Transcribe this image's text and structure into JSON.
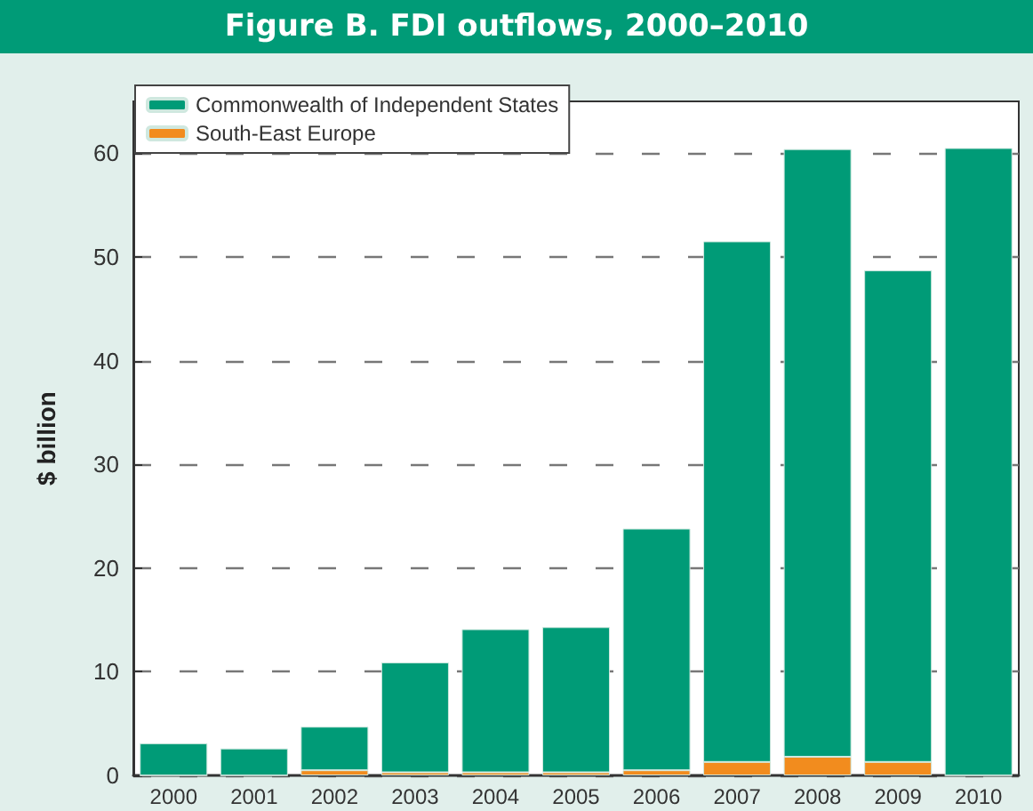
{
  "chart_data": {
    "type": "bar",
    "title": "Figure B. FDI outflows, 2000–2010",
    "ylabel": "$ billion",
    "categories": [
      "2000",
      "2001",
      "2002",
      "2003",
      "2004",
      "2005",
      "2006",
      "2007",
      "2008",
      "2009",
      "2010"
    ],
    "series": [
      {
        "name": "South-East Europe",
        "color": "#f28c1e",
        "values": [
          0,
          0,
          0.5,
          0.3,
          0.3,
          0.3,
          0.5,
          1.3,
          1.8,
          1.3,
          0
        ]
      },
      {
        "name": "Commonwealth of Independent States",
        "color": "#009b77",
        "values": [
          3.1,
          2.6,
          4.2,
          10.6,
          13.8,
          14.0,
          23.3,
          50.2,
          58.6,
          47.4,
          60.5
        ]
      }
    ],
    "stacked": true,
    "ylim": [
      0,
      65
    ],
    "yticks": [
      0,
      10,
      20,
      30,
      40,
      50,
      60
    ],
    "grid": "y",
    "legend": "top left"
  }
}
